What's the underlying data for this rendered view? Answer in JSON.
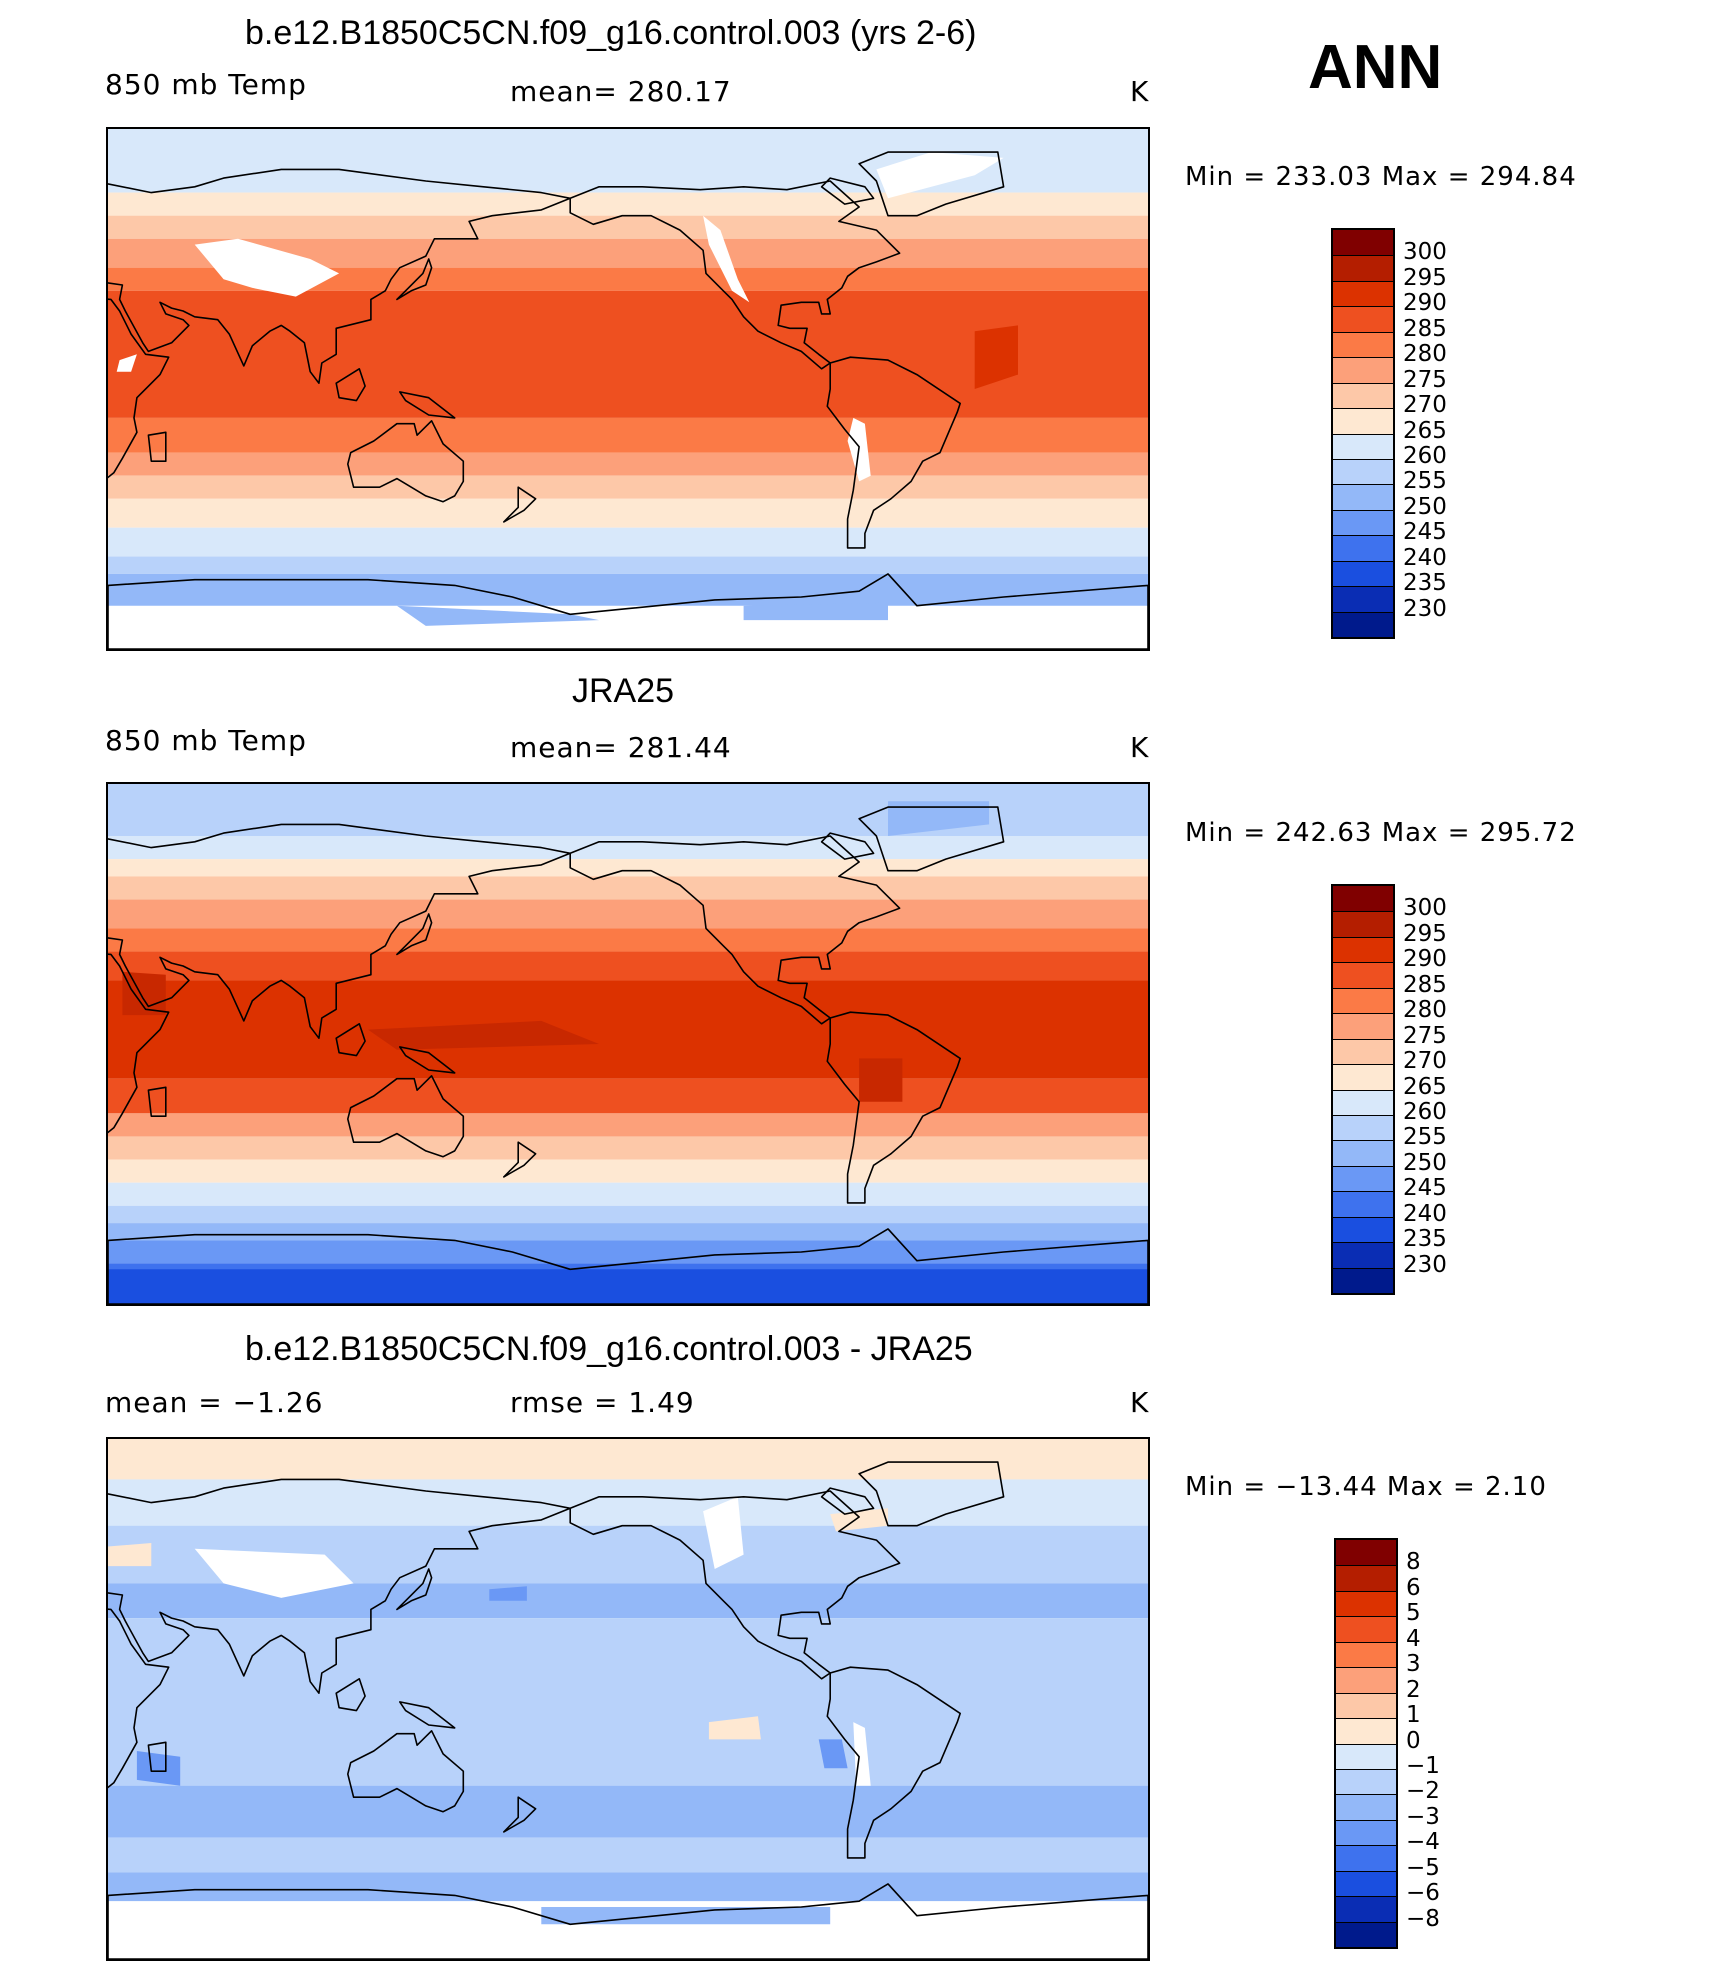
{
  "header": {
    "season_label": "ANN"
  },
  "panels": [
    {
      "title": "b.e12.B1850C5CN.f09_g16.control.003 (yrs 2-6)",
      "left_label": "850 mb Temp",
      "center_label": "mean=  280.17",
      "units": "K",
      "minmax": "Min  =  233.03  Max  =  294.84",
      "map_type": "model",
      "colorbar_labels": [
        "300",
        "295",
        "290",
        "285",
        "280",
        "275",
        "270",
        "265",
        "260",
        "255",
        "250",
        "245",
        "240",
        "235",
        "230"
      ]
    },
    {
      "title": "JRA25",
      "left_label": "850 mb Temp",
      "center_label": "mean=  281.44",
      "units": "K",
      "minmax": "Min  =  242.63  Max  =  295.72",
      "map_type": "obs",
      "colorbar_labels": [
        "300",
        "295",
        "290",
        "285",
        "280",
        "275",
        "270",
        "265",
        "260",
        "255",
        "250",
        "245",
        "240",
        "235",
        "230"
      ]
    },
    {
      "title": "b.e12.B1850C5CN.f09_g16.control.003 - JRA25",
      "left_label": "mean =    −1.26",
      "center_label": "rmse =     1.49",
      "units": "K",
      "minmax": "Min  =  −13.44  Max  =     2.10",
      "map_type": "diff",
      "colorbar_labels": [
        "8",
        "6",
        "5",
        "4",
        "3",
        "2",
        "1",
        "0",
        "−1",
        "−2",
        "−3",
        "−4",
        "−5",
        "−6",
        "−8"
      ]
    }
  ],
  "colorbar_colors": [
    "#800000",
    "#B41E00",
    "#DC3200",
    "#EE5020",
    "#FB7A46",
    "#FCA07A",
    "#FDC8A8",
    "#FEE8D2",
    "#D8E8FA",
    "#B8D2FA",
    "#93B8F8",
    "#6A98F5",
    "#3E72EE",
    "#1A4FE0",
    "#0A2DB4",
    "#001A8C"
  ]
}
